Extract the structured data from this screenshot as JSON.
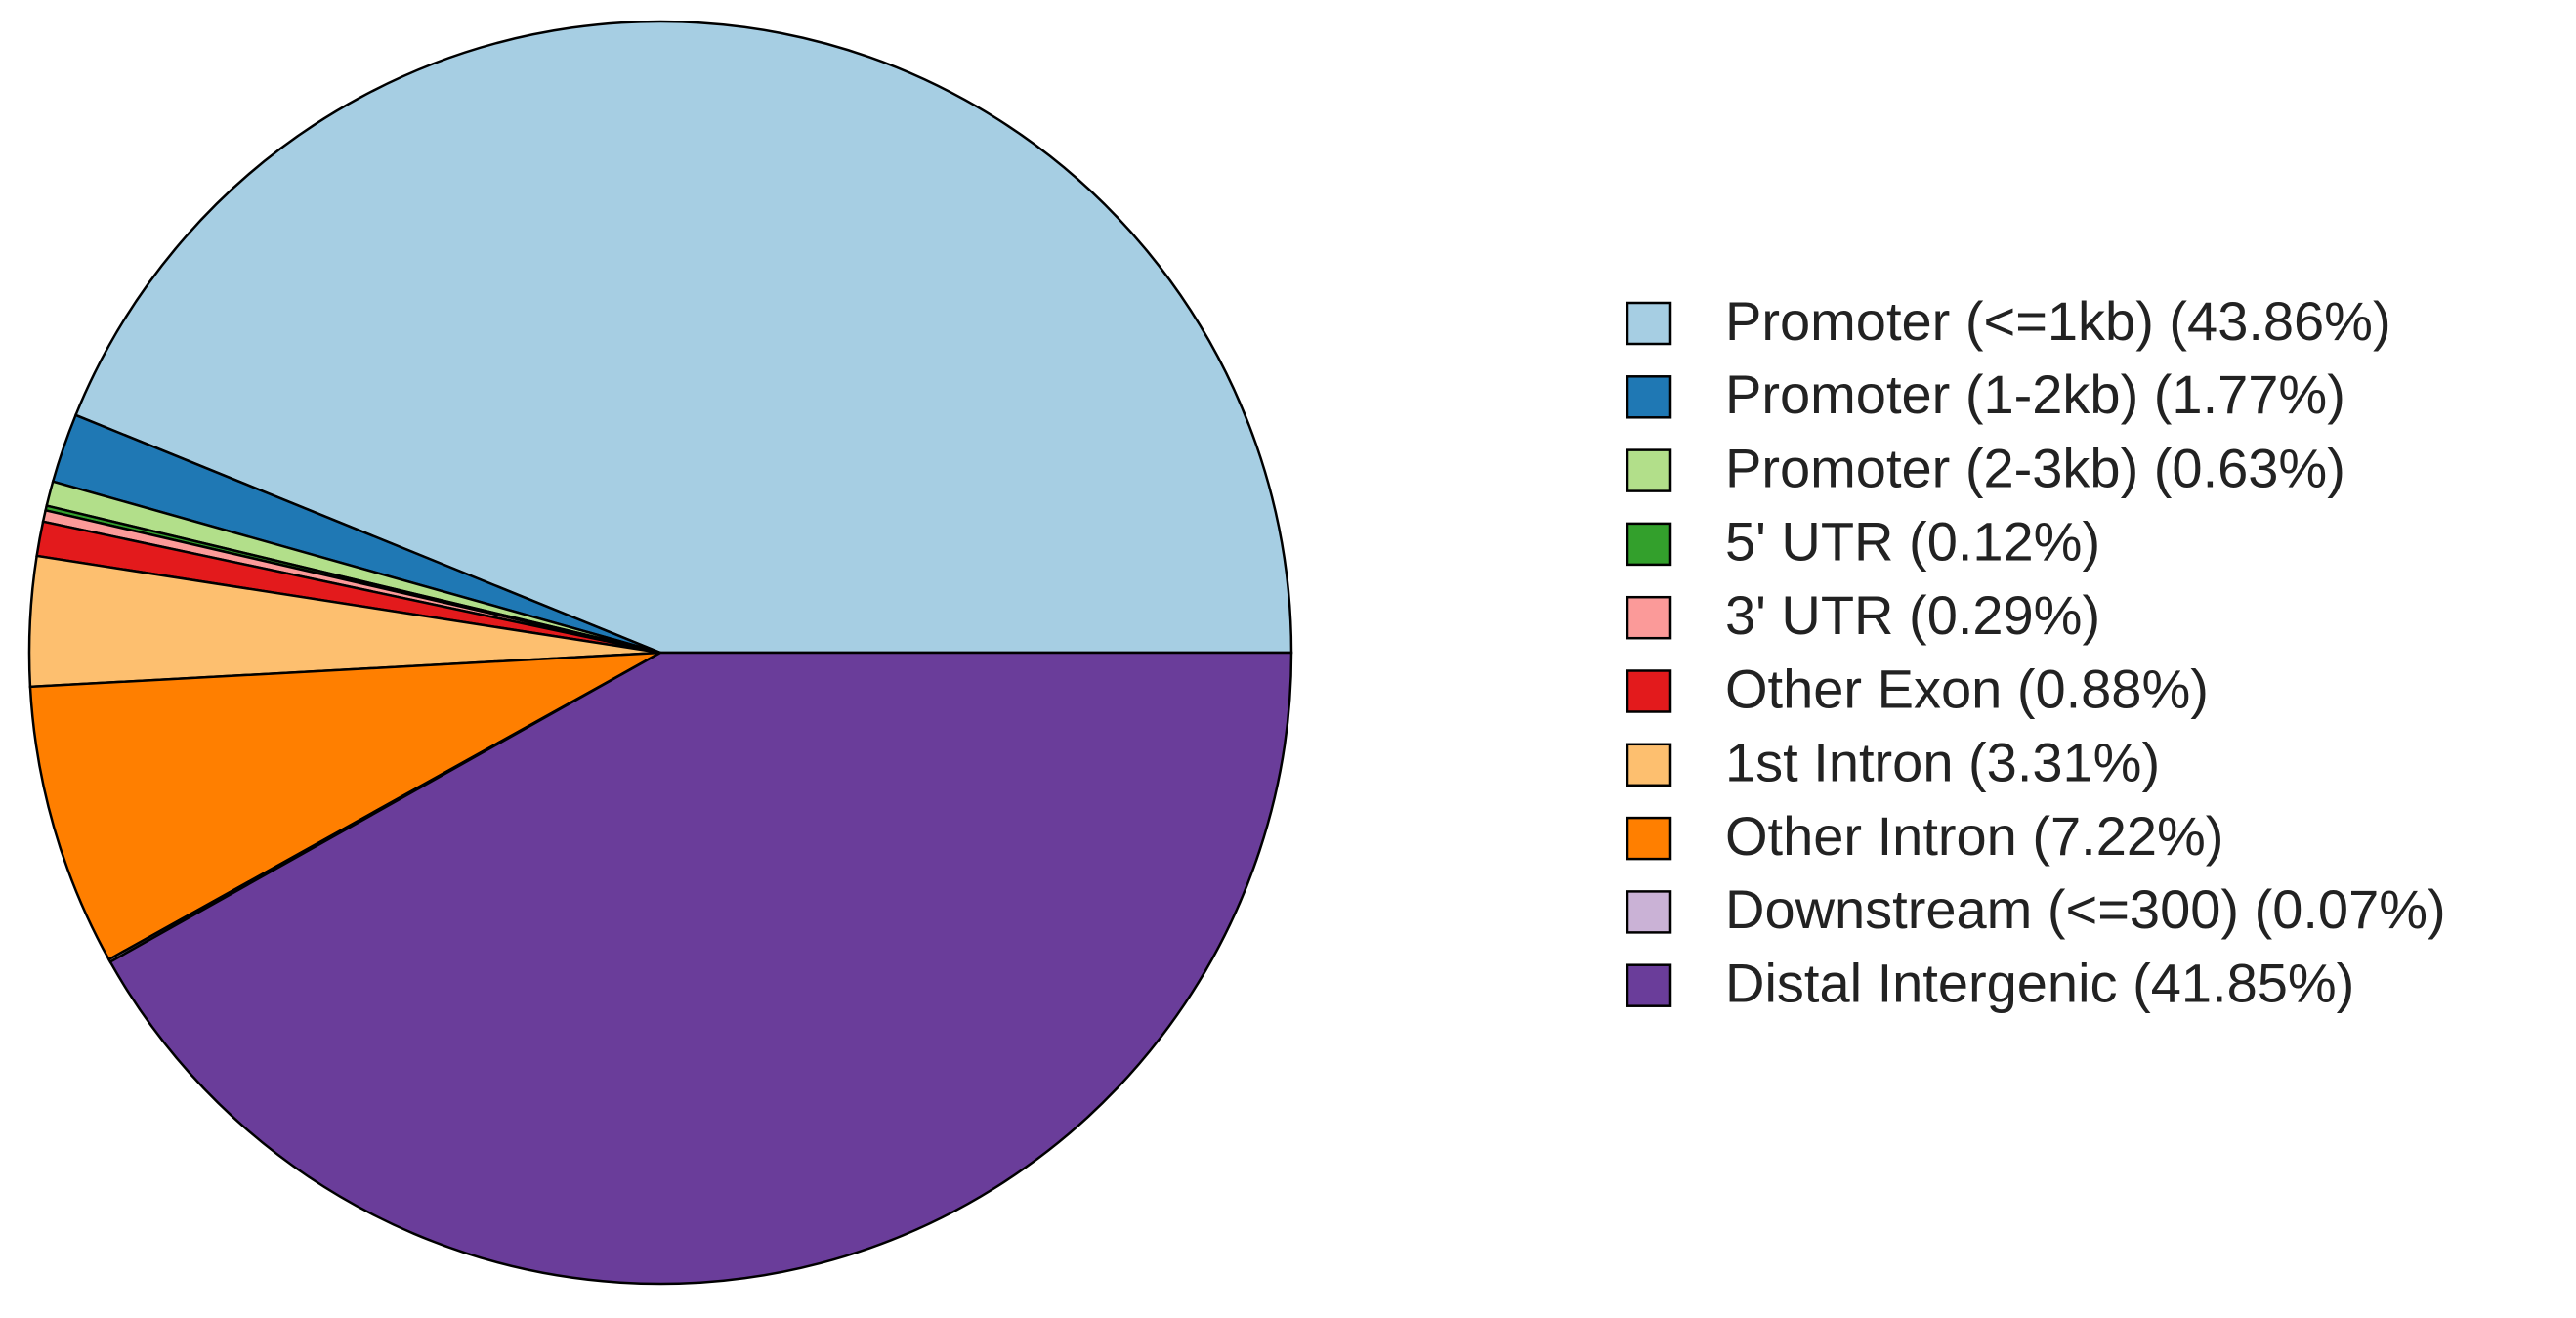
{
  "chart_data": {
    "type": "pie",
    "categories": [
      "Promoter (<=1kb) (43.86%)",
      "Promoter (1-2kb) (1.77%)",
      "Promoter (2-3kb) (0.63%)",
      "5' UTR (0.12%)",
      "3' UTR (0.29%)",
      "Other Exon (0.88%)",
      "1st Intron (3.31%)",
      "Other Intron (7.22%)",
      "Downstream (<=300) (0.07%)",
      "Distal Intergenic (41.85%)"
    ],
    "values": [
      43.86,
      1.77,
      0.63,
      0.12,
      0.29,
      0.88,
      3.31,
      7.22,
      0.07,
      41.85
    ],
    "colors": [
      "#A6CEE3",
      "#1F78B4",
      "#B2DF8A",
      "#33A02C",
      "#FB9A99",
      "#E31A1C",
      "#FDBF6F",
      "#FF7F00",
      "#CAB2D6",
      "#6A3D9A"
    ],
    "legend": "right"
  }
}
